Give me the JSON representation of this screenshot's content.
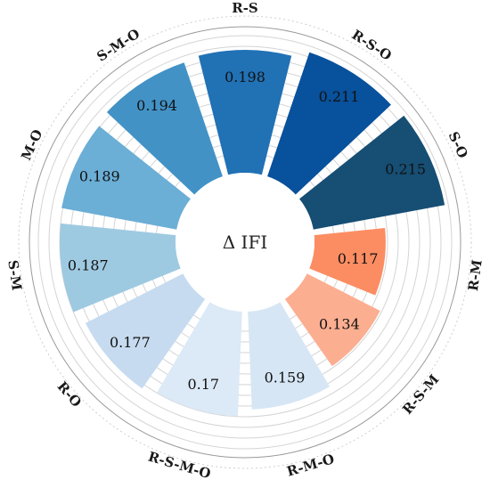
{
  "chart_data": {
    "type": "bar",
    "subtype": "polar-bar",
    "center_label": "Δ IFI",
    "categories": [
      "R-S",
      "R-S-O",
      "S-O",
      "R-M",
      "R-S-M",
      "R-M-O",
      "R-S-M-O",
      "R-O",
      "S-M",
      "M-O",
      "S-M-O"
    ],
    "values": [
      0.198,
      0.211,
      0.215,
      0.117,
      0.134,
      0.159,
      0.17,
      0.177,
      0.187,
      0.189,
      0.194
    ],
    "value_labels": [
      "0.198",
      "0.211",
      "0.215",
      "0.117",
      "0.134",
      "0.159",
      "0.17",
      "0.177",
      "0.187",
      "0.189",
      "0.194"
    ],
    "colors": [
      "#2171b5",
      "#08519c",
      "#164e74",
      "#fc8d62",
      "#fcae91",
      "#d6e6f4",
      "#dce9f6",
      "#c6dbef",
      "#9ecae1",
      "#6baed6",
      "#4292c6"
    ],
    "grid": true
  }
}
